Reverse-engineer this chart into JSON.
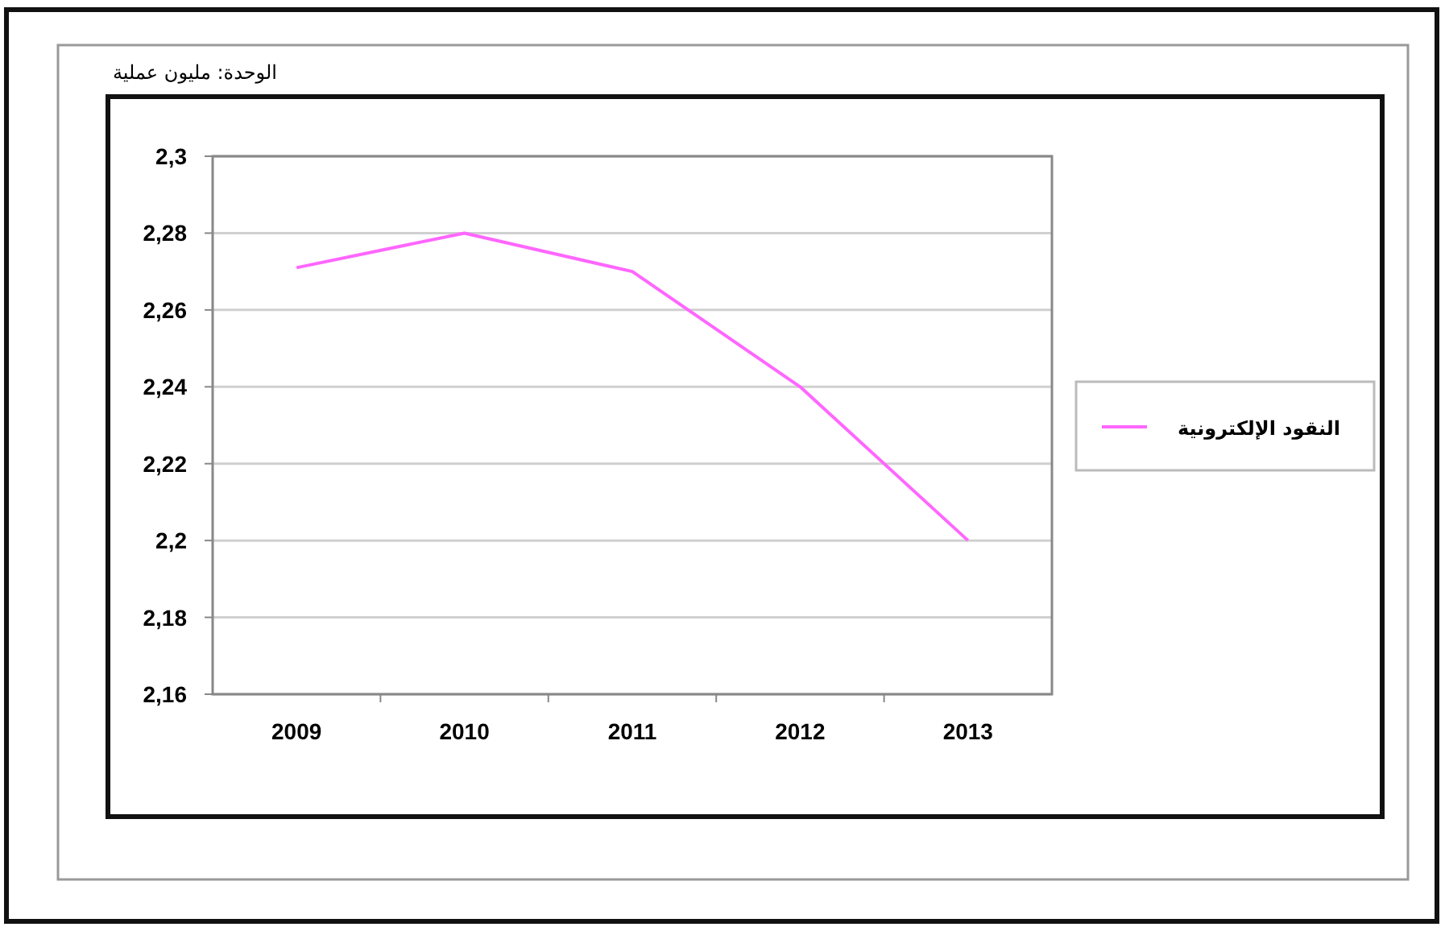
{
  "chart_data": {
    "type": "line",
    "title": "الوحدة: مليون عملية",
    "categories": [
      "2009",
      "2010",
      "2011",
      "2012",
      "2013"
    ],
    "series": [
      {
        "name": "النقود الإلكترونية",
        "color": "#ff66ff",
        "values": [
          2.271,
          2.28,
          2.27,
          2.24,
          2.2
        ]
      }
    ],
    "ylim": [
      2.16,
      2.3
    ],
    "yticks": [
      {
        "value": 2.16,
        "label": "2,16"
      },
      {
        "value": 2.18,
        "label": "2,18"
      },
      {
        "value": 2.2,
        "label": "2,2"
      },
      {
        "value": 2.22,
        "label": "2,22"
      },
      {
        "value": 2.24,
        "label": "2,24"
      },
      {
        "value": 2.26,
        "label": "2,26"
      },
      {
        "value": 2.28,
        "label": "2,28"
      },
      {
        "value": 2.3,
        "label": "2,3"
      }
    ],
    "grid": "y",
    "legend": "right",
    "marker": "none"
  }
}
